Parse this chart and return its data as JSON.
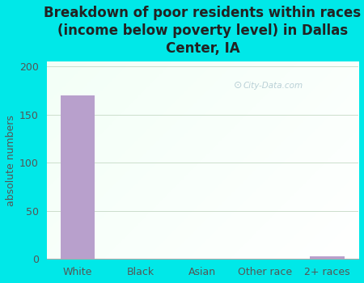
{
  "categories": [
    "White",
    "Black",
    "Asian",
    "Other race",
    "2+ races"
  ],
  "values": [
    170,
    0,
    0,
    0,
    3
  ],
  "bar_color": "#b8a0cc",
  "title": "Breakdown of poor residents within races\n(income below poverty level) in Dallas\nCenter, IA",
  "ylabel": "absolute numbers",
  "ylim": [
    0,
    205
  ],
  "yticks": [
    0,
    50,
    100,
    150,
    200
  ],
  "background_color": "#00e8e8",
  "grid_color": "#ccddcc",
  "title_color": "#222222",
  "watermark": "City-Data.com",
  "title_fontsize": 12,
  "ylabel_fontsize": 9,
  "tick_fontsize": 9
}
